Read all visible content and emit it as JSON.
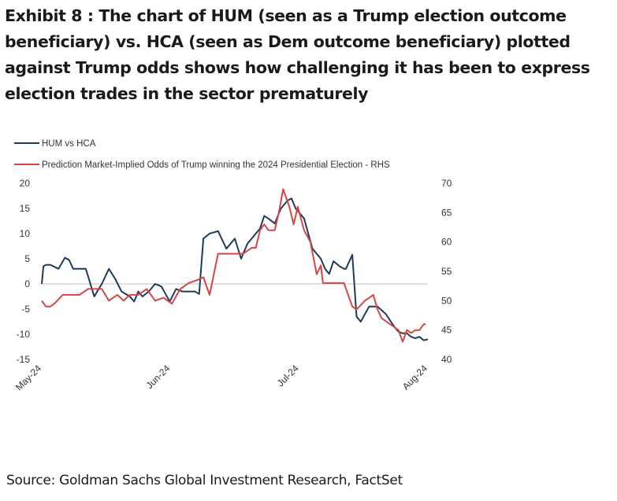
{
  "header": {
    "title": "Exhibit 8 : The chart of HUM (seen as a Trump election outcome beneficiary) vs. HCA (seen as Dem outcome beneficiary) plotted against Trump odds shows how challenging it has been to express election trades in the sector prematurely"
  },
  "footer": {
    "source": "Source: Goldman Sachs Global Investment Research, FactSet"
  },
  "colors": {
    "hum_vs_hca": "#1f3b5c",
    "trump_odds": "#d64545",
    "axis": "#bfbfbf",
    "text": "#333333"
  },
  "chart_data": {
    "type": "line",
    "x_type": "time",
    "x_ticks": [
      "May-24",
      "Jun-24",
      "Jul-24",
      "Aug-24"
    ],
    "y_left": {
      "ylim": [
        -15,
        20
      ],
      "ticks": [
        "20",
        "15",
        "10",
        "5",
        "0",
        "-5",
        "-10",
        "-15"
      ]
    },
    "y_right": {
      "ylim": [
        40,
        70
      ],
      "ticks": [
        "70",
        "65",
        "60",
        "55",
        "50",
        "45",
        "40"
      ]
    },
    "grid": false,
    "legend_position": "top-left",
    "series": [
      {
        "name": "HUM vs HCA",
        "axis": "left",
        "color": "#1f3b5c",
        "x": [
          0.0,
          0.4,
          1.0,
          2.0,
          4.0,
          5.5,
          6.5,
          7.5,
          8.5,
          10.5,
          12.5,
          14.3,
          16.0,
          17.5,
          19.0,
          21.0,
          22.0,
          23.0,
          24.0,
          25.5,
          27.0,
          28.5,
          30.5,
          32.0,
          33.5,
          35.0,
          36.0,
          36.5,
          37.5,
          38.5,
          40.0,
          42.0,
          44.0,
          46.0,
          47.5,
          49.0,
          50.0,
          51.0,
          52.0,
          53.0,
          54.0,
          55.5,
          56.5,
          57.0,
          58.5,
          59.5,
          60.5,
          61.5,
          62.5,
          63.5,
          64.5,
          66.5,
          67.5,
          68.5,
          69.5,
          71.0,
          72.0,
          72.5,
          73.0,
          74.0,
          75.0,
          76.0,
          78.0,
          79.0,
          80.0,
          82.0,
          84.0,
          85.0,
          86.0,
          87.0,
          88.0,
          89.0,
          90.0,
          91.0,
          92.0
        ],
        "y": [
          0.0,
          3.5,
          3.8,
          3.8,
          3.0,
          5.2,
          4.8,
          3.0,
          3.0,
          3.0,
          -2.5,
          0.0,
          3.0,
          1.0,
          -1.5,
          -2.5,
          -3.5,
          -1.5,
          -2.5,
          -1.5,
          0.0,
          -0.5,
          -3.5,
          -1.0,
          -1.5,
          -1.5,
          -1.5,
          -1.5,
          -2.0,
          9.0,
          10.0,
          10.5,
          7.0,
          9.0,
          5.0,
          8.0,
          9.0,
          10.0,
          11.0,
          13.5,
          13.0,
          12.0,
          14.0,
          15.0,
          16.5,
          17.0,
          15.0,
          14.0,
          13.0,
          10.0,
          7.0,
          5.0,
          3.0,
          2.0,
          4.5,
          3.5,
          3.0,
          3.0,
          4.0,
          5.8,
          -6.5,
          -7.5,
          -4.5,
          -4.5,
          -4.5,
          -6.0,
          -8.5,
          -9.5,
          -9.8,
          -9.8,
          -10.5,
          -10.8,
          -10.5,
          -11.2,
          -11.0
        ]
      },
      {
        "name": "Prediction Market-Implied Odds of Trump winning the 2024 Presidential Election - RHS",
        "axis": "right",
        "color": "#d64545",
        "x": [
          0.0,
          1.0,
          2.0,
          3.0,
          5.0,
          7.0,
          9.0,
          11.0,
          13.0,
          14.3,
          16.0,
          18.0,
          19.5,
          21.0,
          23.0,
          25.0,
          27.0,
          29.0,
          31.0,
          33.0,
          35.0,
          37.0,
          38.5,
          40.0,
          42.0,
          44.0,
          46.0,
          48.0,
          50.0,
          51.0,
          52.0,
          53.0,
          54.0,
          55.5,
          56.5,
          57.5,
          59.0,
          60.0,
          61.0,
          62.5,
          64.0,
          65.5,
          66.5,
          67.0,
          68.5,
          70.0,
          72.0,
          74.0,
          75.0,
          77.0,
          79.0,
          80.0,
          81.0,
          83.0,
          85.0,
          86.0,
          87.0,
          88.0,
          89.0,
          90.0,
          91.0,
          91.5
        ],
        "y": [
          50.0,
          49.0,
          49.0,
          49.5,
          51.0,
          51.0,
          51.0,
          52.0,
          52.0,
          52.0,
          50.0,
          51.0,
          50.0,
          51.0,
          51.0,
          52.0,
          50.0,
          50.5,
          49.5,
          52.0,
          53.0,
          53.5,
          54.0,
          51.0,
          58.0,
          58.0,
          58.0,
          58.0,
          59.0,
          59.0,
          62.0,
          63.0,
          62.0,
          62.0,
          65.0,
          69.0,
          66.0,
          63.0,
          66.0,
          62.0,
          60.0,
          54.5,
          56.0,
          53.0,
          53.0,
          53.0,
          53.0,
          49.0,
          48.5,
          50.0,
          51.0,
          48.5,
          47.0,
          46.0,
          45.0,
          43.0,
          45.0,
          44.5,
          45.0,
          45.0,
          46.0,
          46.0
        ]
      }
    ]
  }
}
